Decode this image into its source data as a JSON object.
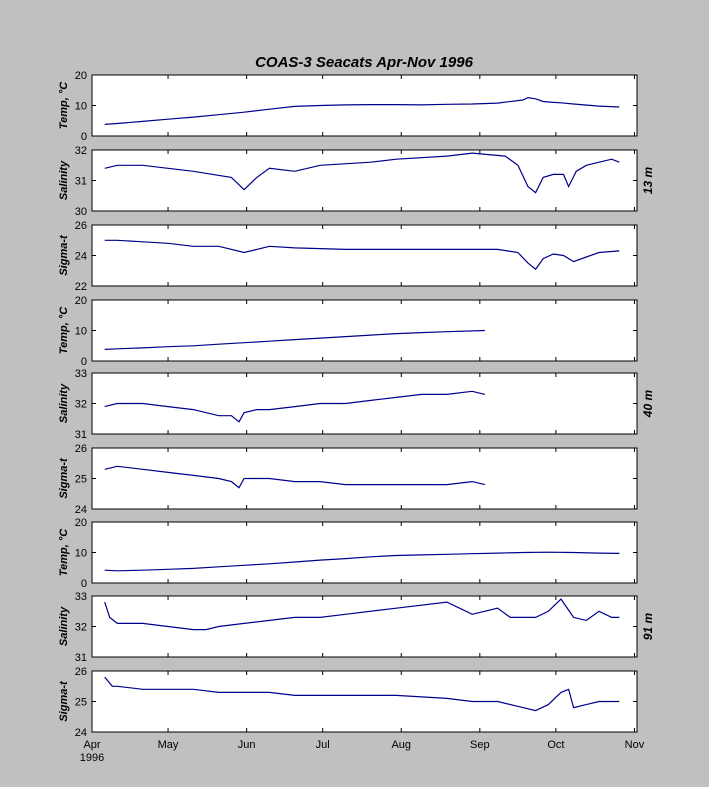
{
  "figure": {
    "title": "COAS-3   Seacats   Apr-Nov 1996"
  },
  "colors": {
    "background": "#c0c0c0",
    "axes_bg": "#ffffff",
    "line": "#00008b"
  },
  "chart_data": [
    {
      "type": "line",
      "depth": "",
      "ylabel": "Temp, °C",
      "ylim": [
        0,
        20
      ],
      "yticks": [
        "0",
        "10",
        "20"
      ],
      "x": [
        5,
        10,
        20,
        30,
        40,
        50,
        60,
        70,
        80,
        90,
        100,
        110,
        120,
        130,
        140,
        150,
        160,
        170,
        172,
        175,
        178,
        182,
        185,
        190,
        200,
        208
      ],
      "values": [
        3.8,
        4.1,
        4.8,
        5.5,
        6.2,
        7.0,
        7.8,
        8.8,
        9.7,
        10.0,
        10.2,
        10.3,
        10.3,
        10.2,
        10.4,
        10.5,
        10.8,
        11.8,
        12.6,
        12.2,
        11.3,
        11.0,
        10.9,
        10.5,
        9.8,
        9.5
      ]
    },
    {
      "type": "line",
      "depth": "13 m",
      "ylabel": "Salinity",
      "ylim": [
        30,
        32
      ],
      "yticks": [
        "30",
        "31",
        "32"
      ],
      "x": [
        5,
        10,
        20,
        30,
        40,
        55,
        60,
        65,
        70,
        80,
        90,
        110,
        120,
        140,
        150,
        163,
        168,
        172,
        175,
        178,
        182,
        186,
        188,
        191,
        195,
        200,
        205,
        208
      ],
      "values": [
        31.4,
        31.5,
        31.5,
        31.4,
        31.3,
        31.1,
        30.7,
        31.1,
        31.4,
        31.3,
        31.5,
        31.6,
        31.7,
        31.8,
        31.9,
        31.8,
        31.5,
        30.8,
        30.6,
        31.1,
        31.2,
        31.2,
        30.8,
        31.3,
        31.5,
        31.6,
        31.7,
        31.6
      ]
    },
    {
      "type": "line",
      "depth": "",
      "ylabel": "Sigma-t",
      "ylim": [
        22,
        26
      ],
      "yticks": [
        "22",
        "24",
        "26"
      ],
      "x": [
        5,
        10,
        20,
        30,
        40,
        50,
        60,
        70,
        80,
        100,
        120,
        140,
        160,
        168,
        172,
        175,
        178,
        182,
        186,
        190,
        195,
        200,
        208
      ],
      "values": [
        25.0,
        25.0,
        24.9,
        24.8,
        24.6,
        24.6,
        24.2,
        24.6,
        24.5,
        24.4,
        24.4,
        24.4,
        24.4,
        24.2,
        23.5,
        23.1,
        23.8,
        24.1,
        24.0,
        23.6,
        23.9,
        24.2,
        24.3
      ]
    },
    {
      "type": "line",
      "depth": "",
      "ylabel": "Temp, °C",
      "ylim": [
        0,
        20
      ],
      "yticks": [
        "0",
        "10",
        "20"
      ],
      "x": [
        5,
        10,
        20,
        30,
        40,
        50,
        60,
        70,
        80,
        90,
        100,
        110,
        120,
        130,
        140,
        155
      ],
      "values": [
        3.8,
        4.0,
        4.3,
        4.7,
        5.0,
        5.5,
        6.0,
        6.5,
        7.0,
        7.5,
        8.0,
        8.5,
        9.0,
        9.3,
        9.6,
        10.0
      ]
    },
    {
      "type": "line",
      "depth": "40 m",
      "ylabel": "Salinity",
      "ylim": [
        31,
        33
      ],
      "yticks": [
        "31",
        "32",
        "33"
      ],
      "x": [
        5,
        10,
        20,
        30,
        40,
        50,
        55,
        58,
        60,
        65,
        70,
        80,
        90,
        100,
        110,
        120,
        130,
        140,
        150,
        155
      ],
      "values": [
        31.9,
        32.0,
        32.0,
        31.9,
        31.8,
        31.6,
        31.6,
        31.4,
        31.7,
        31.8,
        31.8,
        31.9,
        32.0,
        32.0,
        32.1,
        32.2,
        32.3,
        32.3,
        32.4,
        32.3
      ]
    },
    {
      "type": "line",
      "depth": "",
      "ylabel": "Sigma-t",
      "ylim": [
        24,
        26
      ],
      "yticks": [
        "24",
        "25",
        "26"
      ],
      "x": [
        5,
        10,
        20,
        30,
        40,
        50,
        55,
        58,
        60,
        70,
        80,
        90,
        100,
        110,
        120,
        130,
        140,
        150,
        155
      ],
      "values": [
        25.3,
        25.4,
        25.3,
        25.2,
        25.1,
        25.0,
        24.9,
        24.7,
        25.0,
        25.0,
        24.9,
        24.9,
        24.8,
        24.8,
        24.8,
        24.8,
        24.8,
        24.9,
        24.8
      ]
    },
    {
      "type": "line",
      "depth": "",
      "ylabel": "Temp, °C",
      "ylim": [
        0,
        20
      ],
      "yticks": [
        "0",
        "10",
        "20"
      ],
      "x": [
        5,
        10,
        20,
        30,
        40,
        50,
        60,
        70,
        80,
        90,
        100,
        110,
        120,
        130,
        140,
        150,
        160,
        170,
        180,
        190,
        200,
        208
      ],
      "values": [
        4.2,
        4.0,
        4.2,
        4.5,
        4.8,
        5.3,
        5.8,
        6.3,
        6.9,
        7.5,
        8.0,
        8.6,
        9.0,
        9.2,
        9.4,
        9.6,
        9.8,
        10.0,
        10.1,
        10.0,
        9.8,
        9.7
      ]
    },
    {
      "type": "line",
      "depth": "91 m",
      "ylabel": "Salinity",
      "ylim": [
        31,
        33
      ],
      "yticks": [
        "31",
        "32",
        "33"
      ],
      "x": [
        5,
        7,
        10,
        20,
        30,
        40,
        45,
        50,
        60,
        70,
        80,
        90,
        100,
        120,
        140,
        145,
        150,
        160,
        165,
        175,
        180,
        185,
        190,
        195,
        200,
        205,
        208
      ],
      "values": [
        32.8,
        32.3,
        32.1,
        32.1,
        32.0,
        31.9,
        31.9,
        32.0,
        32.1,
        32.2,
        32.3,
        32.3,
        32.4,
        32.6,
        32.8,
        32.6,
        32.4,
        32.6,
        32.3,
        32.3,
        32.5,
        32.9,
        32.3,
        32.2,
        32.5,
        32.3,
        32.3
      ]
    },
    {
      "type": "line",
      "depth": "",
      "ylabel": "Sigma-t",
      "ylim": [
        24,
        26
      ],
      "yticks": [
        "24",
        "25",
        "26"
      ],
      "x": [
        5,
        8,
        10,
        20,
        30,
        40,
        50,
        60,
        70,
        80,
        90,
        100,
        120,
        140,
        150,
        160,
        170,
        175,
        180,
        185,
        188,
        190,
        195,
        200,
        205,
        208
      ],
      "values": [
        25.8,
        25.5,
        25.5,
        25.4,
        25.4,
        25.4,
        25.3,
        25.3,
        25.3,
        25.2,
        25.2,
        25.2,
        25.2,
        25.1,
        25.0,
        25.0,
        24.8,
        24.7,
        24.9,
        25.3,
        25.4,
        24.8,
        24.9,
        25.0,
        25.0,
        25.0
      ]
    }
  ],
  "xaxis": {
    "xlim": [
      0,
      215
    ],
    "ticks": [
      {
        "pos": 0,
        "label": "Apr"
      },
      {
        "pos": 30,
        "label": "May"
      },
      {
        "pos": 61,
        "label": "Jun"
      },
      {
        "pos": 91,
        "label": "Jul"
      },
      {
        "pos": 122,
        "label": "Aug"
      },
      {
        "pos": 153,
        "label": "Sep"
      },
      {
        "pos": 183,
        "label": "Oct"
      },
      {
        "pos": 214,
        "label": "Nov"
      }
    ],
    "year_label": "1996"
  }
}
